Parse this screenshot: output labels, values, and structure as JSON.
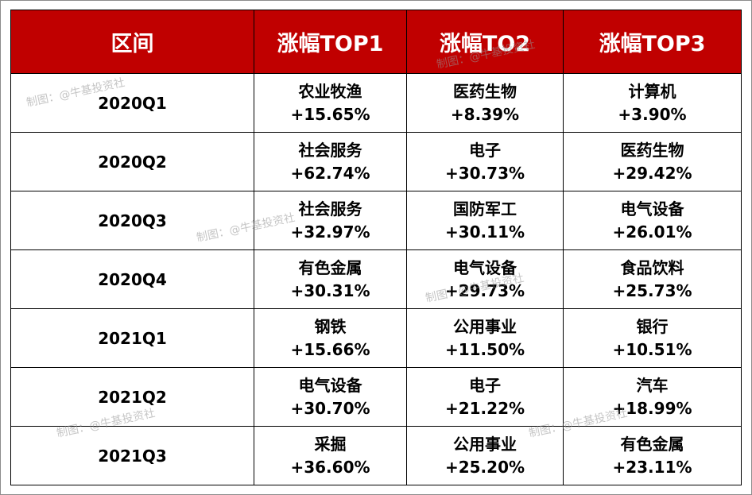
{
  "header": {
    "col0": "区间",
    "col1": "涨幅TOP1",
    "col2": "涨幅TO2",
    "col3": "涨幅TOP3"
  },
  "rows": [
    {
      "period": "2020Q1",
      "top1": {
        "name": "农业牧渔",
        "pct": "+15.65%"
      },
      "top2": {
        "name": "医药生物",
        "pct": "+8.39%"
      },
      "top3": {
        "name": "计算机",
        "pct": "+3.90%"
      }
    },
    {
      "period": "2020Q2",
      "top1": {
        "name": "社会服务",
        "pct": "+62.74%"
      },
      "top2": {
        "name": "电子",
        "pct": "+30.73%"
      },
      "top3": {
        "name": "医药生物",
        "pct": "+29.42%"
      }
    },
    {
      "period": "2020Q3",
      "top1": {
        "name": "社会服务",
        "pct": "+32.97%"
      },
      "top2": {
        "name": "国防军工",
        "pct": "+30.11%"
      },
      "top3": {
        "name": "电气设备",
        "pct": "+26.01%"
      }
    },
    {
      "period": "2020Q4",
      "top1": {
        "name": "有色金属",
        "pct": "+30.31%"
      },
      "top2": {
        "name": "电气设备",
        "pct": "+29.73%"
      },
      "top3": {
        "name": "食品饮料",
        "pct": "+25.73%"
      }
    },
    {
      "period": "2021Q1",
      "top1": {
        "name": "钢铁",
        "pct": "+15.66%"
      },
      "top2": {
        "name": "公用事业",
        "pct": "+11.50%"
      },
      "top3": {
        "name": "银行",
        "pct": "+10.51%"
      }
    },
    {
      "period": "2021Q2",
      "top1": {
        "name": "电气设备",
        "pct": "+30.70%"
      },
      "top2": {
        "name": "电子",
        "pct": "+21.22%"
      },
      "top3": {
        "name": "汽车",
        "pct": "+18.99%"
      }
    },
    {
      "period": "2021Q3",
      "top1": {
        "name": "采掘",
        "pct": "+36.60%"
      },
      "top2": {
        "name": "公用事业",
        "pct": "+25.20%"
      },
      "top3": {
        "name": "有色金属",
        "pct": "+23.11%"
      }
    }
  ],
  "watermark": "制图：@牛基投资社",
  "colors": {
    "header_bg": "#c00000",
    "header_text": "#ffffff"
  }
}
